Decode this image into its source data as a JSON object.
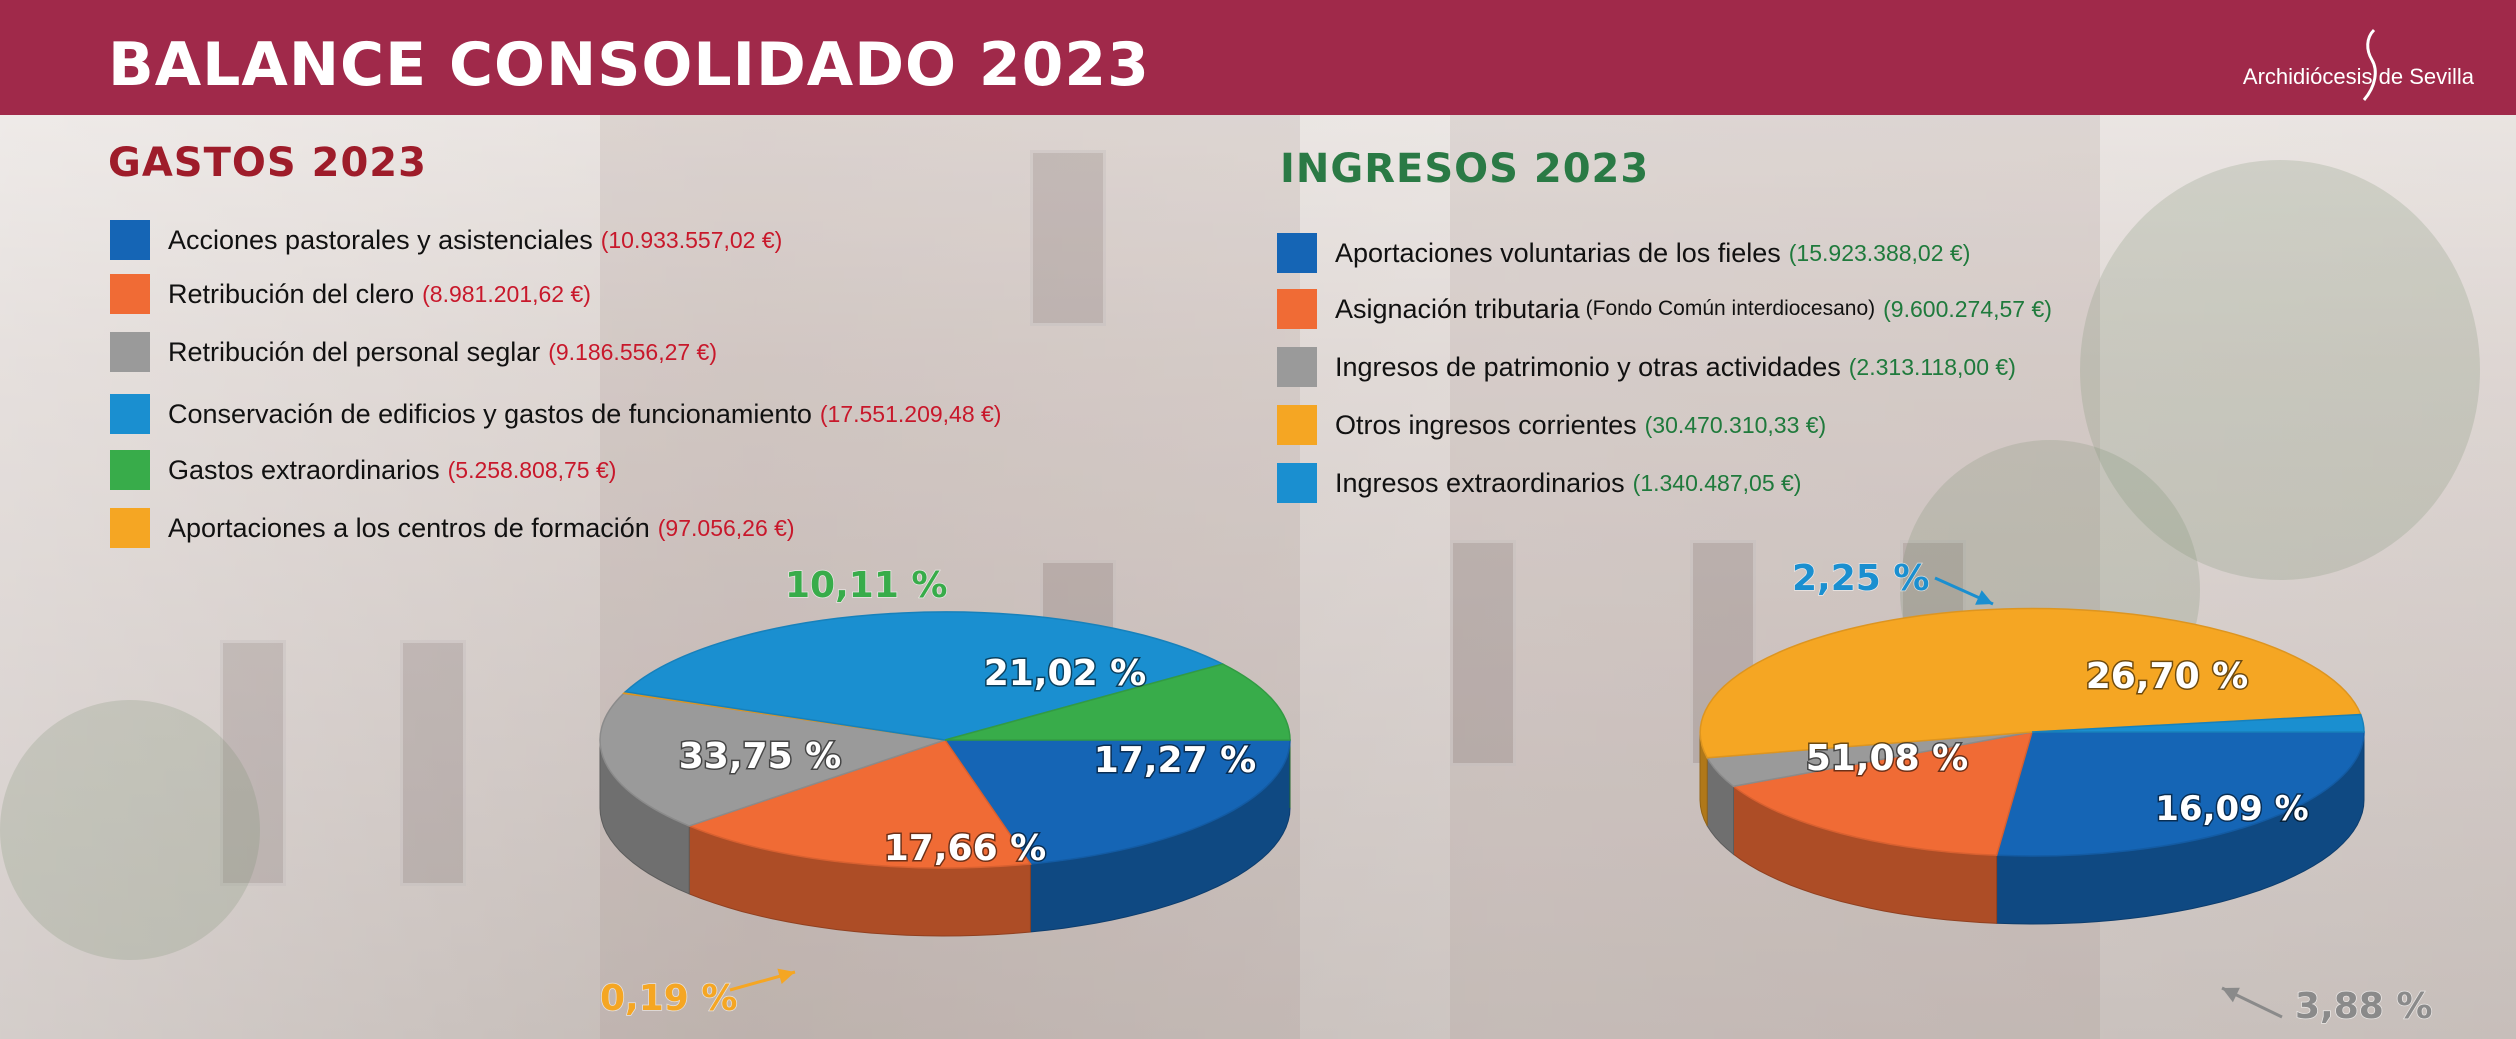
{
  "header": {
    "title": "BALANCE CONSOLIDADO 2023",
    "org": "Archidiócesis de Sevilla"
  },
  "gastos": {
    "title": "GASTOS 2023",
    "items": [
      {
        "label": "Acciones pastorales y asistenciales",
        "amount": "(10.933.557,02 €)",
        "color": "#1565b5"
      },
      {
        "label": "Retribución del clero",
        "amount": "(8.981.201,62 €)",
        "color": "#f06b35"
      },
      {
        "label": "Retribución del personal seglar",
        "amount": "(9.186.556,27 €)",
        "color": "#9a9a9a"
      },
      {
        "label": "Conservación de edificios y gastos de funcionamiento",
        "amount": "(17.551.209,48 €)",
        "color": "#1a8fd0"
      },
      {
        "label": "Gastos extraordinarios",
        "amount": "(5.258.808,75 €)",
        "color": "#38ac4a"
      },
      {
        "label": "Aportaciones a los centros de formación",
        "amount": "(97.056,26 €)",
        "color": "#f5a623"
      }
    ]
  },
  "ingresos": {
    "title": "INGRESOS 2023",
    "items": [
      {
        "label": "Aportaciones voluntarias de los fieles",
        "sub": "",
        "amount": "(15.923.388,02 €)",
        "color": "#1565b5"
      },
      {
        "label": "Asignación tributaria",
        "sub": "(Fondo Común interdiocesano)",
        "amount": "(9.600.274,57 €)",
        "color": "#f06b35"
      },
      {
        "label": "Ingresos de patrimonio y otras actividades",
        "sub": "",
        "amount": "(2.313.118,00 €)",
        "color": "#9a9a9a"
      },
      {
        "label": "Otros ingresos corrientes",
        "sub": "",
        "amount": "(30.470.310,33 €)",
        "color": "#f5a623"
      },
      {
        "label": "Ingresos extraordinarios",
        "sub": "",
        "amount": "(1.340.487,05 €)",
        "color": "#1a8fd0"
      }
    ]
  },
  "chart_data": [
    {
      "type": "pie",
      "title": "GASTOS 2023",
      "categories": [
        "Acciones pastorales y asistenciales",
        "Retribución del clero",
        "Retribución del personal seglar",
        "Aportaciones a los centros de formación",
        "Conservación de edificios y gastos de funcionamiento",
        "Gastos extraordinarios"
      ],
      "values": [
        21.02,
        17.27,
        17.66,
        0.19,
        33.75,
        10.11
      ],
      "labels": [
        "21,02 %",
        "17,27 %",
        "17,66 %",
        "0,19 %",
        "33,75 %",
        "10,11 %"
      ],
      "colors": [
        "#1565b5",
        "#f06b35",
        "#9a9a9a",
        "#f5a623",
        "#1a8fd0",
        "#38ac4a"
      ],
      "label_colors": [
        "#ffffff",
        "#ffffff",
        "#ffffff",
        "#f5a623",
        "#ffffff",
        "#38ac4a"
      ]
    },
    {
      "type": "pie",
      "title": "INGRESOS 2023",
      "categories": [
        "Aportaciones voluntarias de los fieles",
        "Asignación tributaria",
        "Ingresos de patrimonio y otras actividades",
        "Otros ingresos corrientes",
        "Ingresos extraordinarios"
      ],
      "values": [
        26.7,
        16.09,
        3.88,
        51.08,
        2.25
      ],
      "labels": [
        "26,70 %",
        "16,09 %",
        "3,88 %",
        "51,08 %",
        "2,25 %"
      ],
      "colors": [
        "#1565b5",
        "#f06b35",
        "#9a9a9a",
        "#f5a623",
        "#1a8fd0"
      ],
      "label_colors": [
        "#ffffff",
        "#ffffff",
        "#8a8a8a",
        "#ffffff",
        "#1a8fd0"
      ]
    }
  ]
}
